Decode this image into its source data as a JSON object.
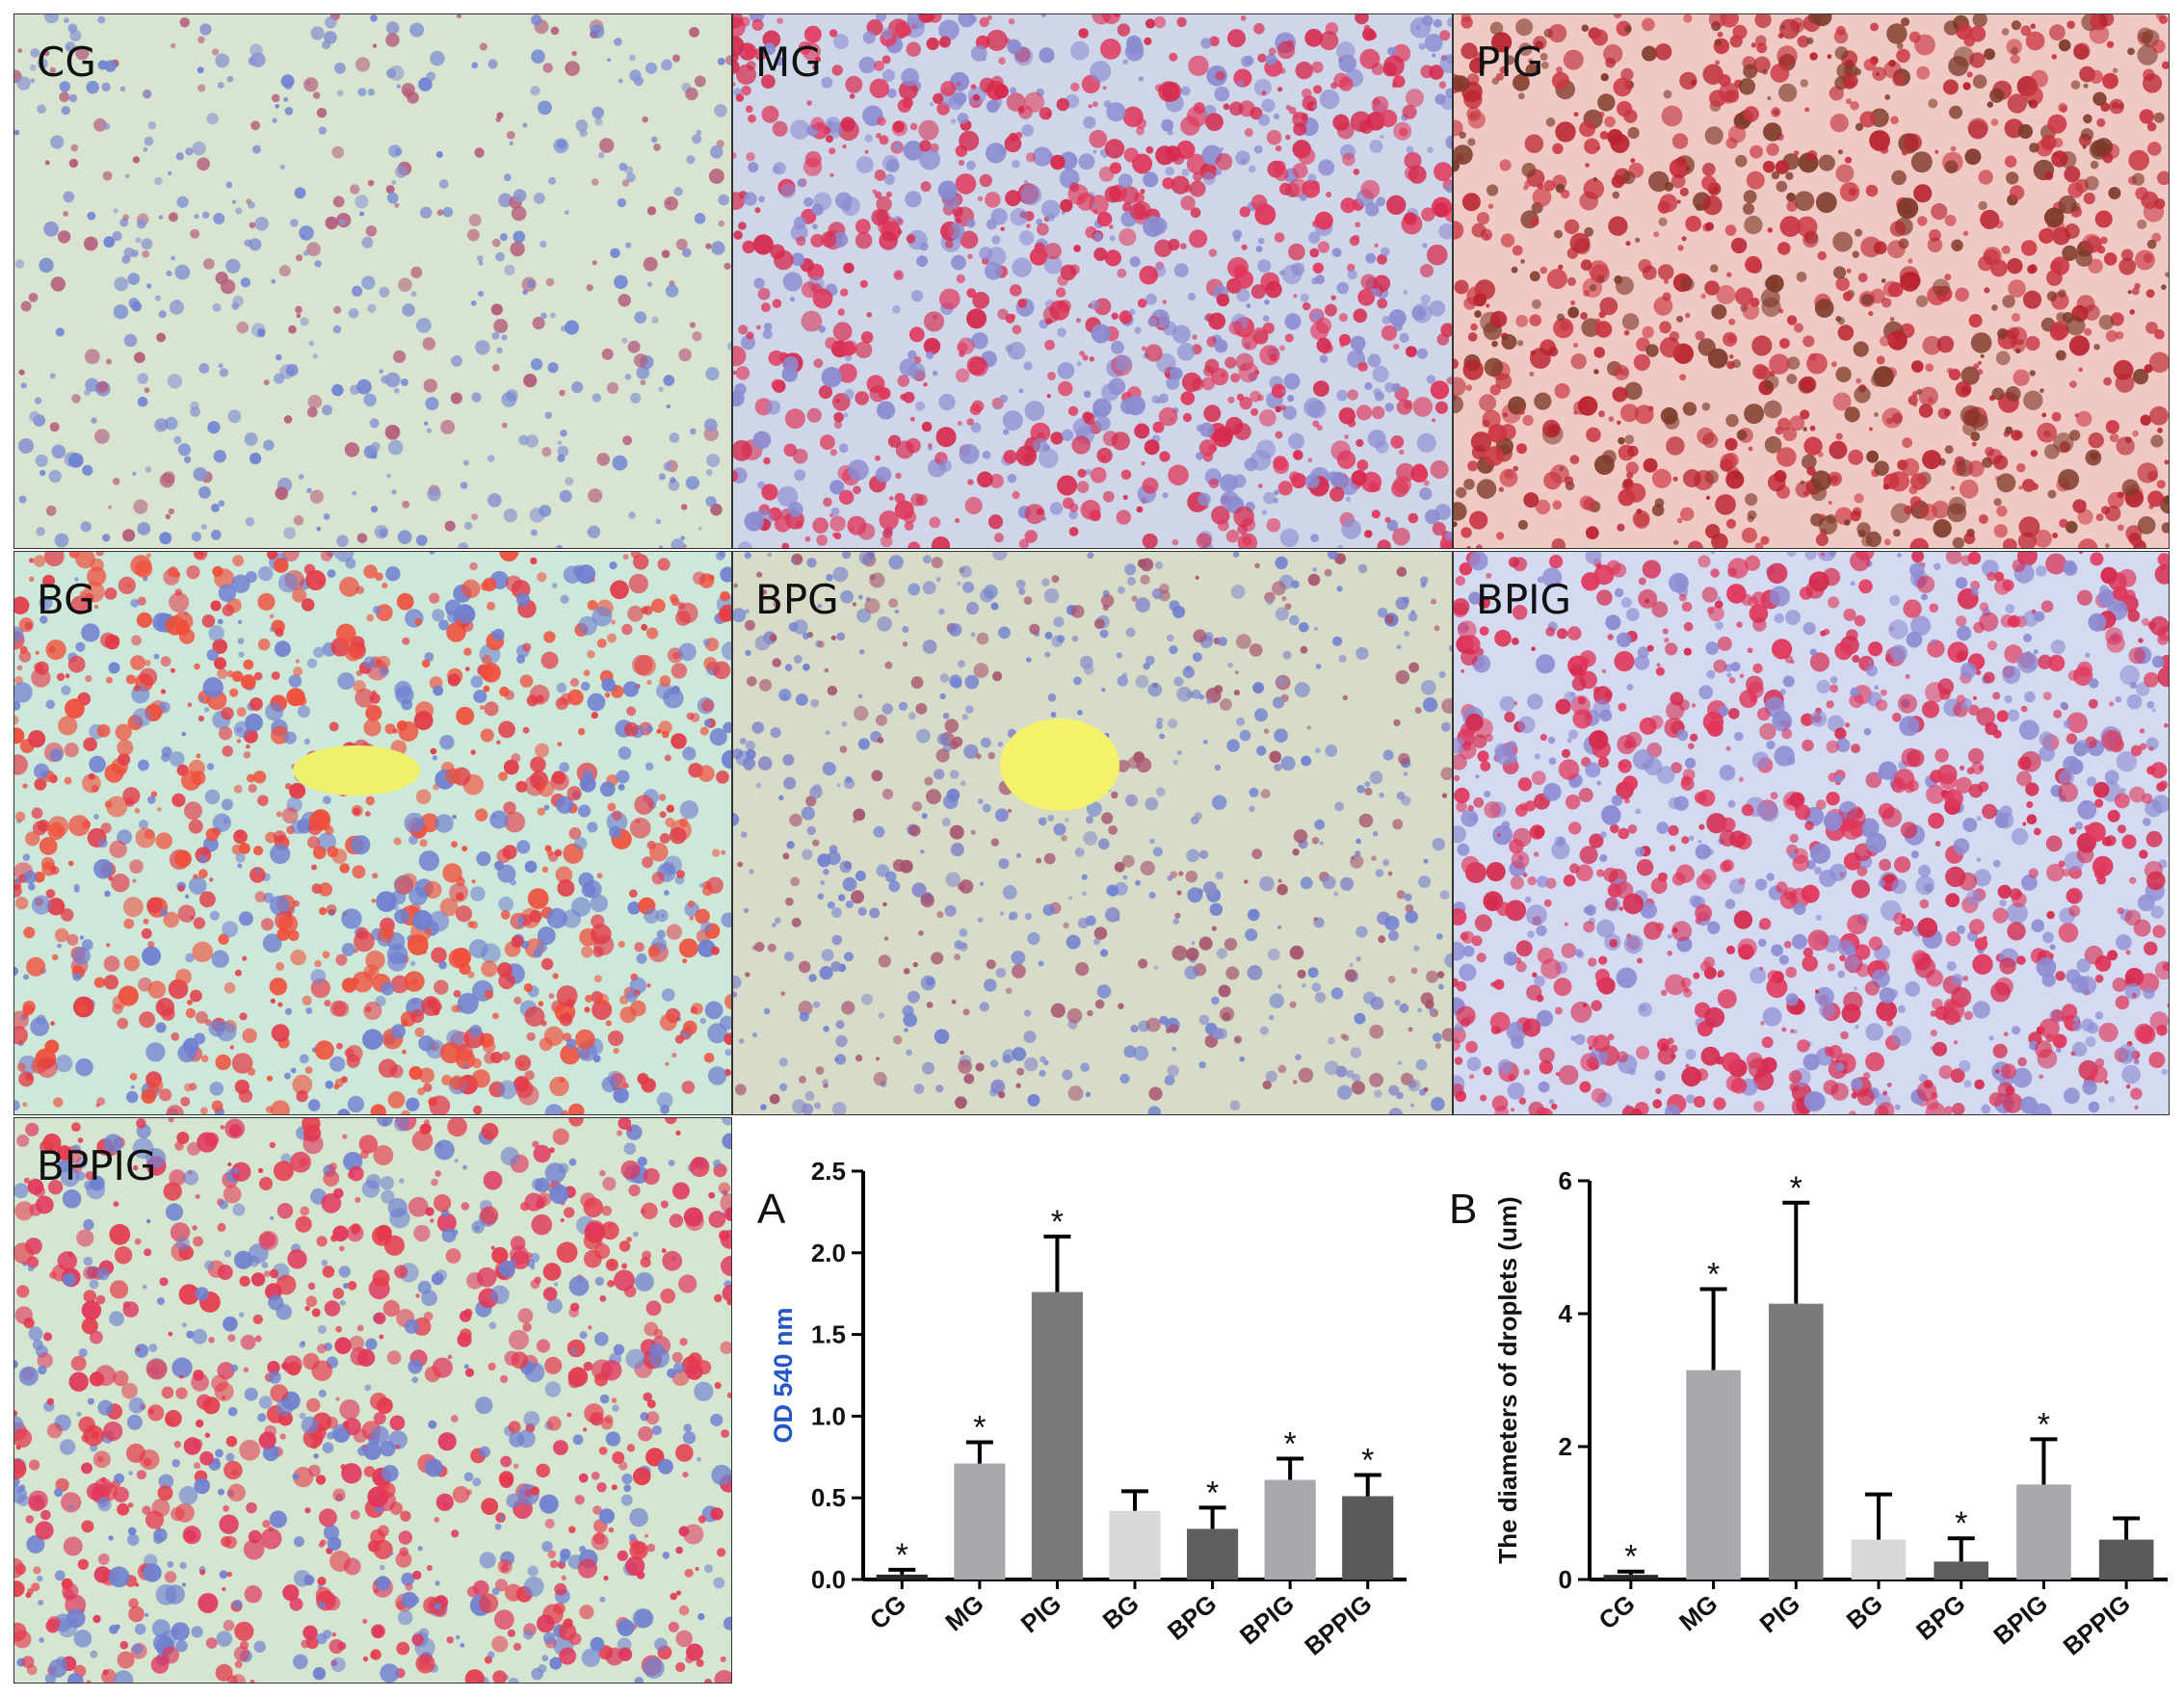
{
  "micrographs": [
    {
      "label": "CG",
      "base": "#d8e4d0",
      "cells": [
        "#6f83d2",
        "#8a94cf",
        "#b45a7a"
      ],
      "density": 0.35
    },
    {
      "label": "MG",
      "base": "#cfd6e8",
      "cells": [
        "#e0365a",
        "#d52a4d",
        "#8b8bd0"
      ],
      "density": 0.75
    },
    {
      "label": "PIG",
      "base": "#f1c9c4",
      "cells": [
        "#c93542",
        "#b8232f",
        "#7e3a2a"
      ],
      "density": 0.65
    },
    {
      "label": "BG",
      "base": "#cde7d8",
      "cells": [
        "#e23a47",
        "#6f7fd0",
        "#ef4e3a"
      ],
      "density": 0.7
    },
    {
      "label": "BPG",
      "base": "#d6dcc8",
      "cells": [
        "#6f7fd0",
        "#8a8cc8",
        "#a7536f"
      ],
      "density": 0.45
    },
    {
      "label": "BPIG",
      "base": "#d4daf0",
      "cells": [
        "#e0365a",
        "#d52a4d",
        "#8d8ad2"
      ],
      "density": 0.75
    },
    {
      "label": "BPPIG",
      "base": "#d4e6cf",
      "cells": [
        "#e53a4c",
        "#6f7fd0",
        "#e0365a"
      ],
      "density": 0.65
    }
  ],
  "chart_data": [
    {
      "panel_letter": "A",
      "type": "bar",
      "title": "",
      "ylabel": "OD 540 nm",
      "xlabel": "",
      "categories": [
        "CG",
        "MG",
        "PIG",
        "BG",
        "BPG",
        "BPIG",
        "BPPIG"
      ],
      "values": [
        0.03,
        0.71,
        1.76,
        0.42,
        0.31,
        0.61,
        0.51
      ],
      "errors": [
        0.03,
        0.13,
        0.34,
        0.12,
        0.13,
        0.13,
        0.13
      ],
      "significant": [
        true,
        true,
        true,
        false,
        true,
        true,
        true
      ],
      "marker": "*",
      "ylim": [
        0,
        2.5
      ],
      "yticks": [
        "0.0",
        "0.5",
        "1.0",
        "1.5",
        "2.0",
        "2.5"
      ],
      "ytick_values": [
        0,
        0.5,
        1.0,
        1.5,
        2.0,
        2.5
      ],
      "bar_colors": [
        "#2a2a2a",
        "#a8a8ad",
        "#7a7a7a",
        "#d8d8d8",
        "#5f5f5f",
        "#a8a8ad",
        "#5a5a5a"
      ],
      "ylabel_color": "#2456c8",
      "grid": false
    },
    {
      "panel_letter": "B",
      "type": "bar",
      "title": "",
      "ylabel": "The diameters of droplets (um)",
      "xlabel": "",
      "categories": [
        "CG",
        "MG",
        "PIG",
        "BG",
        "BPG",
        "BPIG",
        "BPPIG"
      ],
      "values": [
        0.07,
        3.15,
        4.15,
        0.6,
        0.27,
        1.43,
        0.6
      ],
      "errors": [
        0.05,
        1.22,
        1.52,
        0.68,
        0.35,
        0.68,
        0.32
      ],
      "significant": [
        true,
        true,
        true,
        false,
        true,
        true,
        false
      ],
      "marker": "*",
      "ylim": [
        0,
        6
      ],
      "yticks": [
        "0",
        "2",
        "4",
        "6"
      ],
      "ytick_values": [
        0,
        2,
        4,
        6
      ],
      "bar_colors": [
        "#2a2a2a",
        "#a8a8ad",
        "#7a7a7a",
        "#d8d8d8",
        "#5f5f5f",
        "#a8a8ad",
        "#5a5a5a"
      ],
      "ylabel_color": "#111111",
      "grid": false
    }
  ]
}
